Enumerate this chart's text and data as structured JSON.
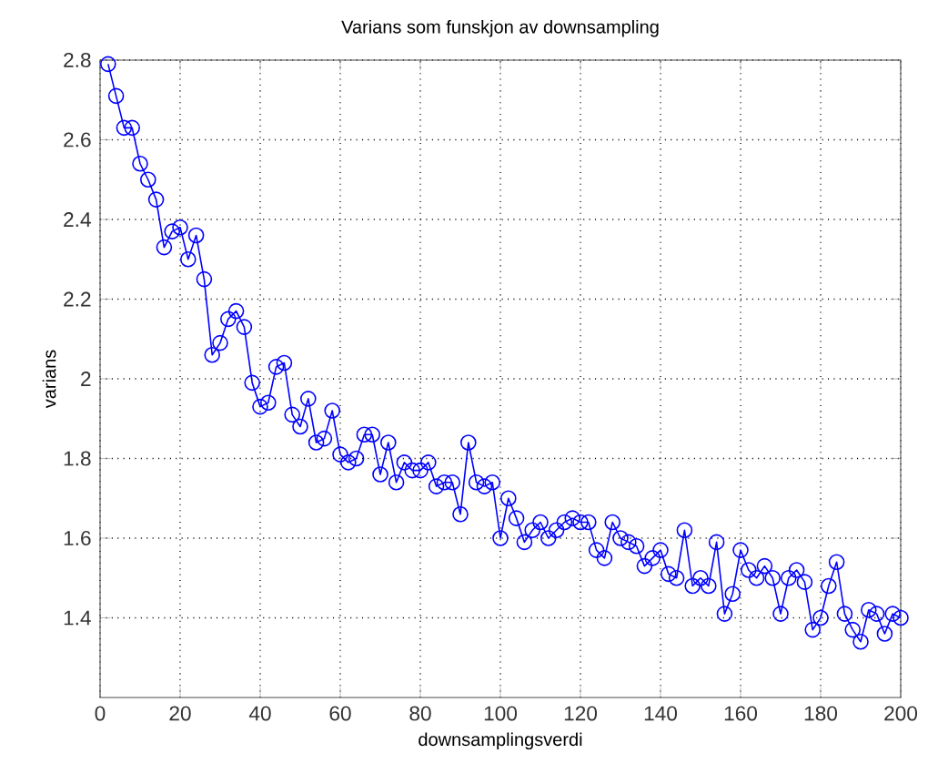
{
  "chart_data": {
    "type": "line",
    "title": "Varians som funskjon av downsampling",
    "xlabel": "downsamplingsverdi",
    "ylabel": "varians",
    "x": [
      2,
      4,
      6,
      8,
      10,
      12,
      14,
      16,
      18,
      20,
      22,
      24,
      26,
      28,
      30,
      32,
      34,
      36,
      38,
      40,
      42,
      44,
      46,
      48,
      50,
      52,
      54,
      56,
      58,
      60,
      62,
      64,
      66,
      68,
      70,
      72,
      74,
      76,
      78,
      80,
      82,
      84,
      86,
      88,
      90,
      92,
      94,
      96,
      98,
      100,
      102,
      104,
      106,
      108,
      110,
      112,
      114,
      116,
      118,
      120,
      122,
      124,
      126,
      128,
      130,
      132,
      134,
      136,
      138,
      140,
      142,
      144,
      146,
      148,
      150,
      152,
      154,
      156,
      158,
      160,
      162,
      164,
      166,
      168,
      170,
      172,
      174,
      176,
      178,
      180,
      182,
      184,
      186,
      188,
      190,
      192,
      194,
      196,
      198,
      200
    ],
    "series": [
      {
        "color": "#0000ff",
        "values": [
          2.79,
          2.71,
          2.63,
          2.63,
          2.54,
          2.5,
          2.45,
          2.33,
          2.37,
          2.38,
          2.3,
          2.36,
          2.25,
          2.06,
          2.09,
          2.15,
          2.17,
          2.13,
          1.99,
          1.93,
          1.94,
          2.03,
          2.04,
          1.91,
          1.88,
          1.95,
          1.84,
          1.85,
          1.92,
          1.81,
          1.79,
          1.8,
          1.86,
          1.86,
          1.76,
          1.84,
          1.74,
          1.79,
          1.77,
          1.77,
          1.79,
          1.73,
          1.74,
          1.74,
          1.66,
          1.84,
          1.74,
          1.73,
          1.74,
          1.6,
          1.7,
          1.65,
          1.59,
          1.62,
          1.64,
          1.6,
          1.62,
          1.64,
          1.65,
          1.64,
          1.64,
          1.57,
          1.55,
          1.64,
          1.6,
          1.59,
          1.58,
          1.53,
          1.55,
          1.57,
          1.51,
          1.5,
          1.62,
          1.48,
          1.5,
          1.48,
          1.59,
          1.41,
          1.46,
          1.57,
          1.52,
          1.5,
          1.53,
          1.5,
          1.41,
          1.5,
          1.52,
          1.49,
          1.37,
          1.4,
          1.48,
          1.54,
          1.41,
          1.37,
          1.34,
          1.42,
          1.41,
          1.36,
          1.41,
          1.4
        ]
      }
    ],
    "xlim": [
      0,
      200
    ],
    "ylim": [
      1.2,
      2.8
    ],
    "xticks": [
      0,
      20,
      40,
      60,
      80,
      100,
      120,
      140,
      160,
      180,
      200
    ],
    "yticks": [
      1.4,
      1.6,
      1.8,
      2,
      2.2,
      2.4,
      2.6,
      2.8
    ],
    "grid": true,
    "marker": "circle",
    "line_style": "solid"
  }
}
